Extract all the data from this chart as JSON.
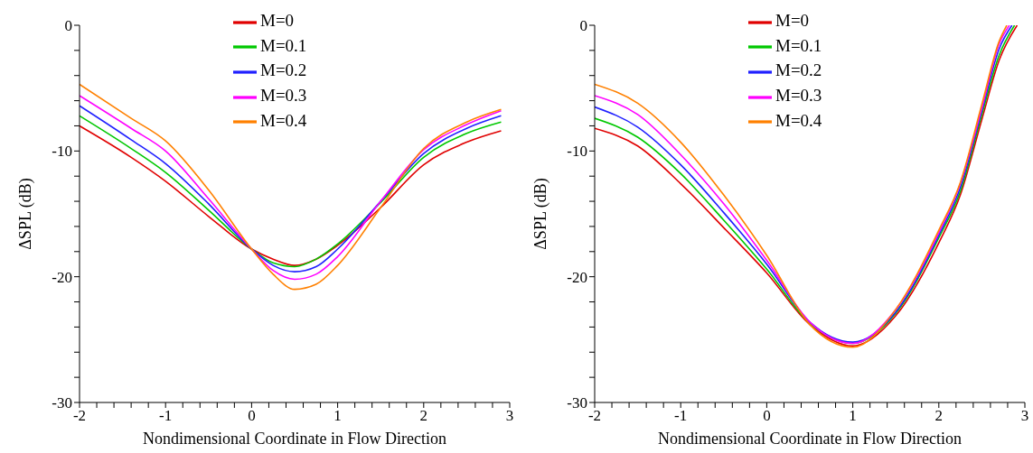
{
  "chart_data": [
    {
      "type": "line",
      "xlabel": "Nondimensional Coordinate in Flow Direction",
      "ylabel": "ΔSPL (dB)",
      "xlim": [
        -2,
        3
      ],
      "ylim": [
        -30,
        0
      ],
      "xticks": [
        -2,
        {
          "value": -1.8,
          "label": null
        },
        {
          "value": -1.6,
          "label": null
        },
        {
          "value": -1.4,
          "label": null
        },
        {
          "value": -1.2,
          "label": null
        },
        -1,
        {
          "value": -0.8,
          "label": null
        },
        {
          "value": -0.6,
          "label": null
        },
        {
          "value": -0.4,
          "label": null
        },
        {
          "value": -0.2,
          "label": null
        },
        0,
        {
          "value": 0.2,
          "label": null
        },
        {
          "value": 0.4,
          "label": null
        },
        {
          "value": 0.6,
          "label": null
        },
        {
          "value": 0.8,
          "label": null
        },
        1,
        {
          "value": 1.2,
          "label": null
        },
        {
          "value": 1.4,
          "label": null
        },
        {
          "value": 1.6,
          "label": null
        },
        {
          "value": 1.8,
          "label": null
        },
        2,
        {
          "value": 2.2,
          "label": null
        },
        {
          "value": 2.4,
          "label": null
        },
        {
          "value": 2.6,
          "label": null
        },
        {
          "value": 2.8,
          "label": null
        },
        3
      ],
      "yticks": [
        -30,
        {
          "value": -28,
          "label": null
        },
        {
          "value": -26,
          "label": null
        },
        {
          "value": -24,
          "label": null
        },
        {
          "value": -22,
          "label": null
        },
        -20,
        {
          "value": -18,
          "label": null
        },
        {
          "value": -16,
          "label": null
        },
        {
          "value": -14,
          "label": null
        },
        {
          "value": -12,
          "label": null
        },
        -10,
        {
          "value": -8,
          "label": null
        },
        {
          "value": -6,
          "label": null
        },
        {
          "value": -4,
          "label": null
        },
        {
          "value": -2,
          "label": null
        },
        0
      ],
      "grid": false,
      "legend": "top",
      "marker": "none",
      "line_style": "solid",
      "x": [
        -2,
        -1.4,
        -1,
        -0.5,
        0,
        0.25,
        0.5,
        0.75,
        1,
        1.5,
        2,
        2.5,
        2.9
      ],
      "series": [
        {
          "name": "M=0",
          "color": "#e00000",
          "values": [
            -8.0,
            -10.5,
            -12.4,
            -15.2,
            -17.8,
            -18.6,
            -19.1,
            -18.6,
            -17.5,
            -14.5,
            -11.1,
            -9.3,
            -8.4
          ]
        },
        {
          "name": "M=0.1",
          "color": "#00c800",
          "values": [
            -7.2,
            -9.8,
            -11.7,
            -14.7,
            -17.8,
            -18.9,
            -19.2,
            -18.6,
            -17.4,
            -14.1,
            -10.5,
            -8.6,
            -7.7
          ]
        },
        {
          "name": "M=0.2",
          "color": "#2020ff",
          "values": [
            -6.4,
            -9.1,
            -11.0,
            -14.2,
            -17.8,
            -19.1,
            -19.6,
            -19.2,
            -17.8,
            -14.0,
            -10.2,
            -8.2,
            -7.2
          ]
        },
        {
          "name": "M=0.3",
          "color": "#ff00ff",
          "values": [
            -5.6,
            -8.2,
            -10.0,
            -13.8,
            -17.8,
            -19.5,
            -20.2,
            -19.8,
            -18.4,
            -14.0,
            -9.9,
            -7.9,
            -6.8
          ]
        },
        {
          "name": "M=0.4",
          "color": "#ff8000",
          "values": [
            -4.7,
            -7.4,
            -9.2,
            -13.1,
            -17.8,
            -19.8,
            -21.0,
            -20.6,
            -19.1,
            -14.5,
            -9.8,
            -7.7,
            -6.7
          ]
        }
      ]
    },
    {
      "type": "line",
      "xlabel": "Nondimensional Coordinate in Flow Direction",
      "ylabel": "ΔSPL (dB)",
      "xlim": [
        -2,
        3
      ],
      "ylim": [
        -30,
        0
      ],
      "xticks": [
        -2,
        {
          "value": -1.8,
          "label": null
        },
        {
          "value": -1.6,
          "label": null
        },
        {
          "value": -1.4,
          "label": null
        },
        {
          "value": -1.2,
          "label": null
        },
        -1,
        {
          "value": -0.8,
          "label": null
        },
        {
          "value": -0.6,
          "label": null
        },
        {
          "value": -0.4,
          "label": null
        },
        {
          "value": -0.2,
          "label": null
        },
        0,
        {
          "value": 0.2,
          "label": null
        },
        {
          "value": 0.4,
          "label": null
        },
        {
          "value": 0.6,
          "label": null
        },
        {
          "value": 0.8,
          "label": null
        },
        1,
        {
          "value": 1.2,
          "label": null
        },
        {
          "value": 1.4,
          "label": null
        },
        {
          "value": 1.6,
          "label": null
        },
        {
          "value": 1.8,
          "label": null
        },
        2,
        {
          "value": 2.2,
          "label": null
        },
        {
          "value": 2.4,
          "label": null
        },
        {
          "value": 2.6,
          "label": null
        },
        {
          "value": 2.8,
          "label": null
        },
        3
      ],
      "yticks": [
        -30,
        {
          "value": -28,
          "label": null
        },
        {
          "value": -26,
          "label": null
        },
        {
          "value": -24,
          "label": null
        },
        {
          "value": -22,
          "label": null
        },
        -20,
        {
          "value": -18,
          "label": null
        },
        {
          "value": -16,
          "label": null
        },
        {
          "value": -14,
          "label": null
        },
        {
          "value": -12,
          "label": null
        },
        -10,
        {
          "value": -8,
          "label": null
        },
        {
          "value": -6,
          "label": null
        },
        {
          "value": -4,
          "label": null
        },
        {
          "value": -2,
          "label": null
        },
        0
      ],
      "grid": false,
      "legend": "top",
      "marker": "none",
      "line_style": "solid",
      "series": [
        {
          "name": "M=0",
          "color": "#e00000",
          "x": [
            -2,
            -1.5,
            -1,
            -0.5,
            0,
            0.5,
            1,
            1.5,
            2,
            2.25,
            2.5,
            2.7,
            2.91
          ],
          "values": [
            -8.2,
            -9.6,
            -12.6,
            -16.1,
            -19.7,
            -23.8,
            -25.5,
            -23.1,
            -17.3,
            -13.5,
            -7.5,
            -2.8,
            0
          ]
        },
        {
          "name": "M=0.1",
          "color": "#00c800",
          "x": [
            -2,
            -1.5,
            -1,
            -0.5,
            0,
            0.5,
            1,
            1.5,
            2,
            2.25,
            2.5,
            2.7,
            2.88
          ],
          "values": [
            -7.4,
            -8.9,
            -11.8,
            -15.5,
            -19.4,
            -23.7,
            -25.3,
            -22.9,
            -16.9,
            -13.2,
            -7.1,
            -2.4,
            0
          ]
        },
        {
          "name": "M=0.2",
          "color": "#2020ff",
          "x": [
            -2,
            -1.5,
            -1,
            -0.5,
            0,
            0.5,
            1,
            1.5,
            2,
            2.25,
            2.5,
            2.7,
            2.85
          ],
          "values": [
            -6.5,
            -8.1,
            -11.1,
            -14.9,
            -19.0,
            -23.6,
            -25.2,
            -22.8,
            -16.7,
            -12.9,
            -6.8,
            -1.9,
            0
          ]
        },
        {
          "name": "M=0.3",
          "color": "#ff00ff",
          "x": [
            -2,
            -1.5,
            -1,
            -0.5,
            0,
            0.5,
            1,
            1.5,
            2,
            2.25,
            2.5,
            2.7,
            2.82
          ],
          "values": [
            -5.6,
            -7.1,
            -10.3,
            -14.2,
            -18.7,
            -23.6,
            -25.3,
            -22.6,
            -16.5,
            -12.6,
            -6.6,
            -1.5,
            0
          ]
        },
        {
          "name": "M=0.4",
          "color": "#ff8000",
          "x": [
            -2,
            -1.5,
            -1,
            -0.5,
            0,
            0.5,
            1,
            1.5,
            2,
            2.25,
            2.5,
            2.7,
            2.79
          ],
          "values": [
            -4.7,
            -6.2,
            -9.3,
            -13.5,
            -18.3,
            -23.8,
            -25.6,
            -22.6,
            -16.3,
            -12.5,
            -6.3,
            -1.3,
            0
          ]
        }
      ]
    }
  ]
}
